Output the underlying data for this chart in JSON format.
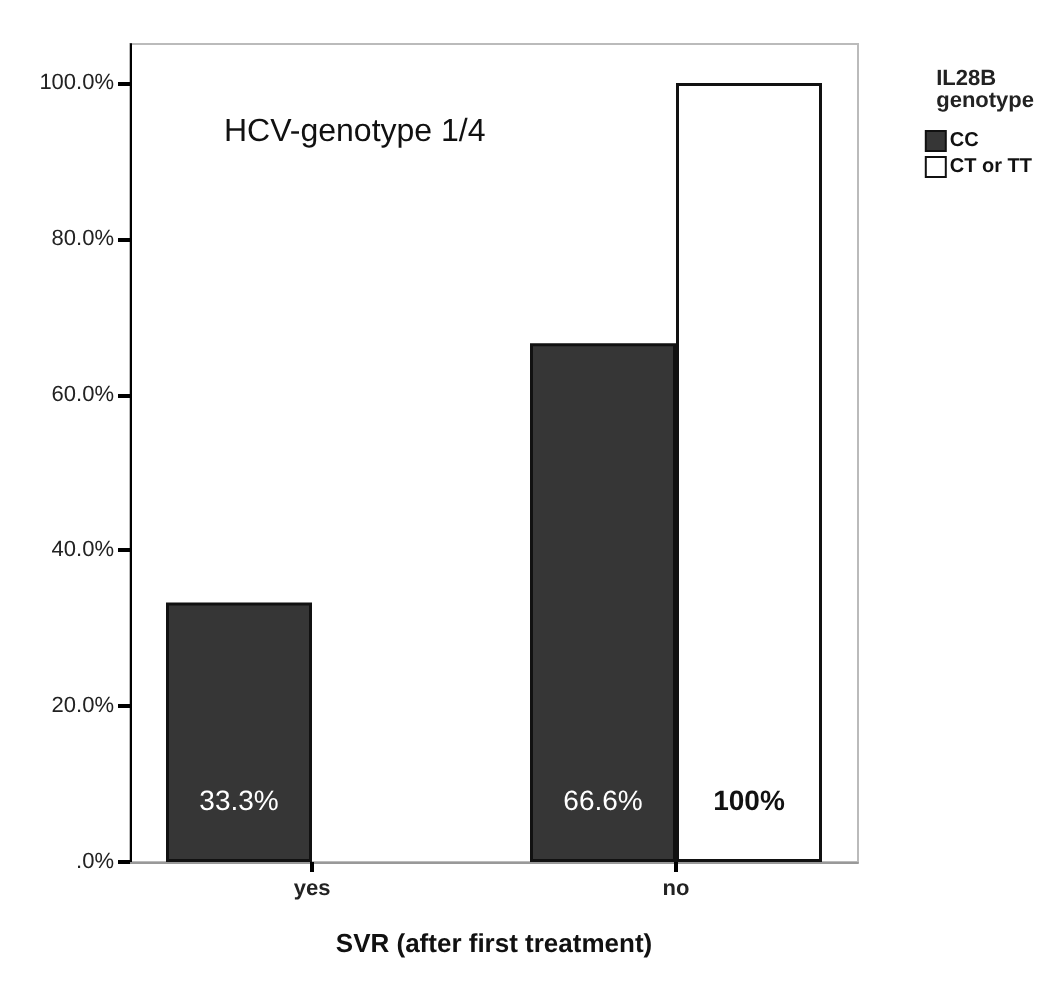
{
  "chart_data": {
    "type": "bar",
    "xlabel": "SVR (after first treatment)",
    "legend_title": "IL28B genotype",
    "annotations": [
      "HCV-genotype 1/4"
    ],
    "categories": [
      "yes",
      "no"
    ],
    "series": [
      {
        "name": "CC",
        "color": "#363636",
        "values": [
          33.3,
          66.6
        ],
        "value_labels": [
          "33.3%",
          "66.6%"
        ]
      },
      {
        "name": "CT or TT",
        "color": "#ffffff",
        "values": [
          null,
          100
        ],
        "value_labels": [
          null,
          "100%"
        ]
      }
    ],
    "ylim": [
      0,
      105
    ],
    "yticks": [
      {
        "value": 0,
        "label": ".0%"
      },
      {
        "value": 20,
        "label": "20.0%"
      },
      {
        "value": 40,
        "label": "40.0%"
      },
      {
        "value": 60,
        "label": "60.0%"
      },
      {
        "value": 80,
        "label": "80.0%"
      },
      {
        "value": 100,
        "label": "100.0%"
      }
    ],
    "grid": false,
    "legend": "top right"
  }
}
